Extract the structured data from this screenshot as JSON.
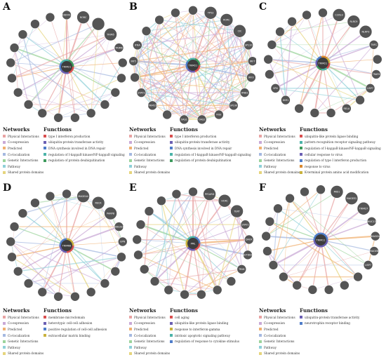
{
  "legend_headings": {
    "networks": "Networks",
    "functions": "Functions"
  },
  "network_colors": {
    "Physical Interactions": "#e8a3a3",
    "Co-expression": "#c9a9d6",
    "Predicted": "#f0b070",
    "Co-localization": "#a4b8e0",
    "Genetic Interactions": "#9cd49c",
    "Pathway": "#8fd0d8",
    "Shared protein domains": "#e6d47c"
  },
  "panels": [
    {
      "letter": "A",
      "center": "TRIM21",
      "nodes": [
        "DDX41",
        "RORC",
        "",
        "TRIM5",
        "TRIM6",
        "",
        "",
        "",
        "",
        "",
        "",
        "",
        "",
        "",
        "",
        "",
        "",
        "",
        "",
        "",
        ""
      ],
      "networks": [
        "Physical Interactions",
        "Co-expression",
        "Predicted",
        "Co-localization",
        "Genetic Interactions",
        "Pathway",
        "Shared protein domains"
      ],
      "functions": [
        {
          "label": "type I interferon production",
          "color": "#d94f4f"
        },
        {
          "label": "ubiquitin-protein transferase activity",
          "color": "#6b5fb3"
        },
        {
          "label": "DNA synthesis involved in DNA repair",
          "color": "#4f7dc9"
        },
        {
          "label": "regulation of I-kappaB kinase/NF-kappaB signaling",
          "color": "#4bb3a8"
        },
        {
          "label": "regulation of protein deubiquitination",
          "color": "#3d9a5c"
        }
      ]
    },
    {
      "letter": "B",
      "center": "TRIM21",
      "nodes": [
        "",
        "TP53",
        "RORC",
        "CIC",
        "SP110",
        "IRF7",
        "IRF3",
        "IFNB1",
        "SP100",
        "RIGI",
        "OAS2",
        "OAS1",
        "",
        "TRIM25",
        "STAT1",
        "",
        "IRF5",
        "IFNA",
        "",
        "",
        ""
      ],
      "networks": [
        "Physical Interactions",
        "Co-expression",
        "Predicted",
        "Co-localization",
        "Genetic Interactions",
        "Pathway",
        "Shared protein domains"
      ],
      "functions": [
        {
          "label": "type I interferon production",
          "color": "#d94f4f"
        },
        {
          "label": "ubiquitin-protein transferase activity",
          "color": "#6b5fb3"
        },
        {
          "label": "DNA synthesis involved in DNA repair",
          "color": "#4f7dc9"
        },
        {
          "label": "regulation of I-kappaB kinase/NF-kappaB signaling",
          "color": "#4bb3a8"
        },
        {
          "label": "regulation of protein deubiquitination",
          "color": "#3d9a5c"
        }
      ]
    },
    {
      "letter": "C",
      "center": "TRIM21",
      "nodes": [
        "",
        "CCKS3",
        "RLRC9",
        "NLRP3",
        "TNFC",
        "",
        "TRAF6",
        "USP7",
        "",
        "RELA",
        "",
        "",
        "",
        "DIM1",
        "SPN",
        "",
        "",
        "",
        "",
        "",
        ""
      ],
      "networks": [
        "Physical Interactions",
        "Co-expression",
        "Predicted",
        "Co-localization",
        "Genetic Interactions",
        "Pathway",
        "Shared protein domains"
      ],
      "functions": [
        {
          "label": "ubiquitin-like protein ligase binding",
          "color": "#d94f4f"
        },
        {
          "label": "pattern recognition receptor signaling pathway",
          "color": "#4bb3a8"
        },
        {
          "label": "regulation of I-kappaB kinase/NF-kappaB signaling",
          "color": "#3d9a5c"
        },
        {
          "label": "cellular response to virus",
          "color": "#6b5fb3"
        },
        {
          "label": "regulation of type I interferon production",
          "color": "#4f7dc9"
        },
        {
          "label": "response to virus",
          "color": "#d9882f"
        },
        {
          "label": "K-terminal protein amino acid modification",
          "color": "#c9b23d"
        }
      ]
    },
    {
      "letter": "D",
      "center": "TRIM68",
      "nodes": [
        "",
        "MAGEA4",
        "RECK",
        "PARP8",
        "UBE2E1",
        "EPN",
        "",
        "",
        "",
        "",
        "",
        "",
        "",
        "",
        "",
        "",
        "",
        "",
        "",
        "",
        ""
      ],
      "networks": [
        "Physical Interactions",
        "Co-expression",
        "Predicted",
        "Co-localization",
        "Genetic Interactions",
        "Pathway",
        "Shared protein domains"
      ],
      "functions": [
        {
          "label": "membrane microdomain",
          "color": "#d94f4f"
        },
        {
          "label": "heterotypic cell-cell adhesion",
          "color": "#6b5fb3"
        },
        {
          "label": "positive regulation of cell-cell adhesion",
          "color": "#4f7dc9"
        },
        {
          "label": "extracellular matrix binding",
          "color": "#c9b23d"
        }
      ]
    },
    {
      "letter": "E",
      "center": "PML",
      "nodes": [
        "",
        "PYCARD",
        "HOXC",
        "TERT",
        "STAT1",
        "DAXX",
        "SETDB1",
        "TRIM",
        "",
        "",
        "",
        "",
        "",
        "",
        "",
        "",
        "",
        "",
        "",
        "",
        ""
      ],
      "networks": [
        "Physical Interactions",
        "Co-expression",
        "Predicted",
        "Co-localization",
        "Genetic Interactions",
        "Pathway",
        "Shared protein domains"
      ],
      "functions": [
        {
          "label": "cell aging",
          "color": "#d94f4f"
        },
        {
          "label": "ubiquitin-like protein ligase binding",
          "color": "#6b5fb3"
        },
        {
          "label": "response to interferon-gamma",
          "color": "#c9b23d"
        },
        {
          "label": "intrinsic apoptotic signaling pathway",
          "color": "#4bb3a8"
        },
        {
          "label": "regulation of response to cytokine stimulus",
          "color": "#4f7dc9"
        }
      ]
    },
    {
      "letter": "F",
      "center": "TRIM11",
      "nodes": [
        "",
        "MID1",
        "MAGEE1",
        "TRIM27",
        "MUC13",
        "MAGEA",
        "MAGEB",
        "USP7",
        "",
        "",
        "",
        "",
        "",
        "",
        "",
        "",
        "",
        "",
        "",
        "",
        ""
      ],
      "networks": [
        "Physical Interactions",
        "Co-expression",
        "Predicted",
        "Co-localization",
        "Genetic Interactions",
        "Pathway",
        "Shared protein domains"
      ],
      "functions": [
        {
          "label": "ubiquitin-protein transferase activity",
          "color": "#6b5fb3"
        },
        {
          "label": "neurotrophin receptor binding",
          "color": "#4f7dc9"
        }
      ]
    }
  ]
}
